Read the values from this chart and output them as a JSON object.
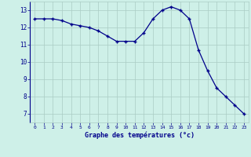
{
  "hours": [
    0,
    1,
    2,
    3,
    4,
    5,
    6,
    7,
    8,
    9,
    10,
    11,
    12,
    13,
    14,
    15,
    16,
    17,
    18,
    19,
    20,
    21,
    22,
    23
  ],
  "temperatures": [
    12.5,
    12.5,
    12.5,
    12.4,
    12.2,
    12.1,
    12.0,
    11.8,
    11.5,
    11.2,
    11.2,
    11.2,
    11.7,
    12.5,
    13.0,
    13.2,
    13.0,
    12.5,
    10.7,
    9.5,
    8.5,
    8.0,
    7.5,
    7.0
  ],
  "line_color": "#00008B",
  "marker": "+",
  "bg_color": "#cef0e8",
  "grid_color": "#aaccc4",
  "xlabel": "Graphe des températures (°c)",
  "xlabel_color": "#00008B",
  "tick_color": "#00008B",
  "ylim": [
    6.5,
    13.5
  ],
  "xlim": [
    -0.5,
    23.5
  ],
  "yticks": [
    7,
    8,
    9,
    10,
    11,
    12,
    13
  ],
  "xtick_labels": [
    "0",
    "1",
    "2",
    "3",
    "4",
    "5",
    "6",
    "7",
    "8",
    "9",
    "10",
    "11",
    "12",
    "13",
    "14",
    "15",
    "16",
    "17",
    "18",
    "19",
    "20",
    "21",
    "22",
    "23"
  ]
}
